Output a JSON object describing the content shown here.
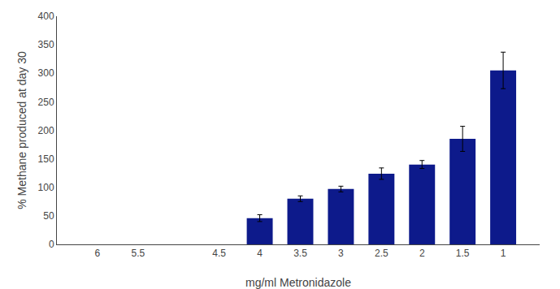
{
  "chart_data": {
    "type": "bar",
    "x": [
      6,
      5.5,
      4.5,
      4,
      3.5,
      3,
      2.5,
      2,
      1.5,
      1
    ],
    "values": [
      0,
      0,
      0,
      46,
      80,
      97,
      124,
      140,
      185,
      305
    ],
    "errors": [
      0,
      0,
      0,
      6,
      5,
      5,
      10,
      7,
      22,
      32
    ],
    "color": "#0d1a8b",
    "xlabel": "mg/ml Metronidazole",
    "ylabel": "% Methane produced at day 30",
    "xlim": [
      6.5,
      0.55
    ],
    "xticks": [
      6,
      5.5,
      4.5,
      4,
      3.5,
      3,
      2.5,
      2,
      1.5,
      1
    ],
    "ylim": [
      0,
      400
    ],
    "yticks": [
      0,
      50,
      100,
      150,
      200,
      250,
      300,
      350,
      400
    ],
    "grid": false
  }
}
